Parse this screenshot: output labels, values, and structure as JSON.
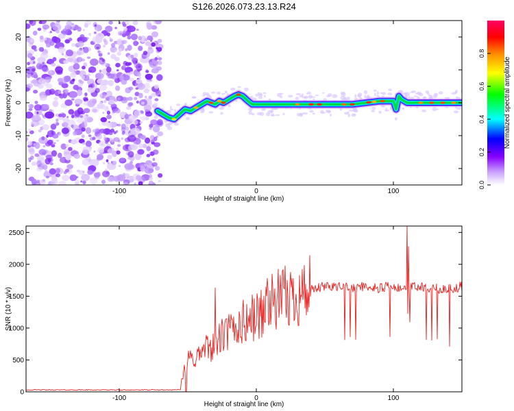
{
  "figure_title": "S126.2026.073.23.13.R24",
  "chart_data": [
    {
      "type": "heatmap",
      "name": "spectrogram",
      "xlabel": "Height of straight line (km)",
      "ylabel": "Frequency (Hz)",
      "xlim": [
        -168,
        150
      ],
      "ylim": [
        -25,
        25
      ],
      "xticks": [
        -100,
        0,
        100
      ],
      "yticks": [
        -20,
        -10,
        0,
        10,
        20
      ],
      "noise_region_x": [
        -168,
        -70
      ],
      "signal_ridge": {
        "x": [
          -72,
          -68,
          -64,
          -60,
          -56,
          -52,
          -48,
          -44,
          -40,
          -36,
          -33,
          -30,
          -27,
          -24,
          -20,
          -16,
          -13,
          -10,
          -6,
          -3,
          0,
          10,
          20,
          30,
          40,
          50,
          60,
          70,
          80,
          90,
          100,
          102,
          104,
          106,
          110,
          120,
          130,
          140,
          150
        ],
        "y": [
          -2.5,
          -3.5,
          -4.5,
          -5.0,
          -3.5,
          -2.0,
          -2.5,
          -1.5,
          -0.5,
          0.5,
          0.0,
          -0.5,
          0.5,
          0.0,
          1.0,
          2.0,
          2.5,
          2.0,
          0.5,
          -0.5,
          -0.5,
          -0.5,
          -0.5,
          -0.5,
          -0.5,
          -0.5,
          -0.5,
          -0.5,
          0.0,
          0.5,
          0.5,
          -2.0,
          2.0,
          1.0,
          0.0,
          0.0,
          0.0,
          0.0,
          0.0
        ]
      },
      "colorbar": {
        "label": "Normalized spectral amplitude",
        "range": [
          0,
          1
        ],
        "ticks": [
          "0.0",
          "0.2",
          "0.4",
          "0.6",
          "0.8"
        ],
        "colors": [
          "#ffffff",
          "#8800ff",
          "#0000ff",
          "#00ffff",
          "#00ff00",
          "#ffff00",
          "#ff8800",
          "#ff0000",
          "#ff00aa"
        ]
      }
    },
    {
      "type": "line",
      "name": "snr",
      "xlabel": "Height of straight line (km)",
      "ylabel": "SNR (10 * v/v)",
      "xlim": [
        -168,
        150
      ],
      "ylim": [
        0,
        2600
      ],
      "xticks": [
        -100,
        0,
        100
      ],
      "yticks": [
        0,
        500,
        1000,
        1500,
        2000,
        2500
      ],
      "color": "#e8201e",
      "baseline": {
        "x": [
          -168,
          -55
        ],
        "value": 30
      },
      "series": {
        "x": [
          -55,
          -52,
          -48,
          -44,
          -40,
          -36,
          -30,
          -24,
          -18,
          -12,
          -6,
          0,
          6,
          12,
          18,
          24,
          30,
          36,
          42,
          48,
          54,
          60,
          66,
          72,
          78,
          84,
          90,
          96,
          100,
          104,
          108,
          112,
          116,
          120,
          126,
          132,
          138,
          144,
          150
        ],
        "values": [
          150,
          450,
          500,
          550,
          600,
          680,
          760,
          880,
          960,
          1050,
          1120,
          1180,
          1300,
          1390,
          1450,
          1480,
          1530,
          1580,
          1600,
          1640,
          1660,
          1660,
          1640,
          1640,
          1650,
          1640,
          1630,
          1640,
          1620,
          1610,
          1620,
          1640,
          1640,
          1640,
          1610,
          1630,
          1600,
          1620,
          1650
        ]
      },
      "peaks": [
        {
          "x": 110,
          "value": 2620
        },
        {
          "x": 111,
          "value": 2280
        },
        {
          "x": 8,
          "value": 1780
        },
        {
          "x": -30,
          "value": 1630
        }
      ]
    }
  ]
}
